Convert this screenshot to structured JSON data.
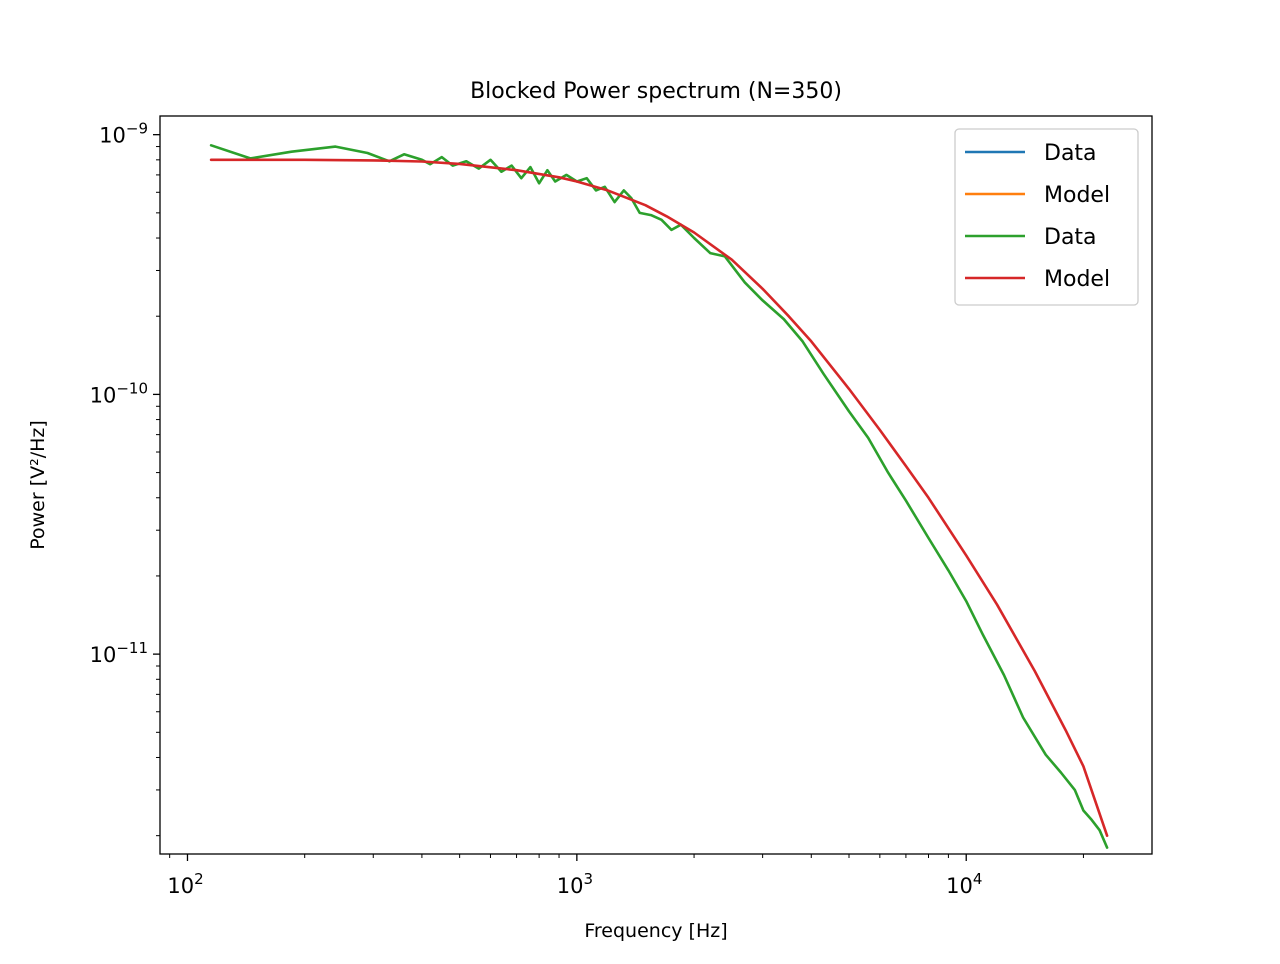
{
  "chart_data": {
    "type": "line",
    "title": "Blocked Power spectrum (N=350)",
    "xlabel": "Frequency [Hz]",
    "ylabel": "Power [V²/Hz]",
    "xscale": "log",
    "yscale": "log",
    "xlim": [
      85,
      30000
    ],
    "ylim": [
      1.7e-12,
      1.18e-09
    ],
    "grid": false,
    "legend": {
      "placement": "top-right"
    },
    "xticks": [
      {
        "value": 100,
        "base": "10",
        "exp": "2"
      },
      {
        "value": 1000,
        "base": "10",
        "exp": "3"
      },
      {
        "value": 10000,
        "base": "10",
        "exp": "4"
      }
    ],
    "yticks": [
      {
        "value": 1e-09,
        "base": "10",
        "exp": "−9"
      },
      {
        "value": 1e-10,
        "base": "10",
        "exp": "−10"
      },
      {
        "value": 1e-11,
        "base": "10",
        "exp": "−11"
      }
    ],
    "series": [
      {
        "name": "Data",
        "color": "#1f77b4",
        "x": [],
        "y": []
      },
      {
        "name": "Model",
        "color": "#ff7f0e",
        "x": [],
        "y": []
      },
      {
        "name": "Data",
        "color": "#2ca02c",
        "x": [
          115,
          145,
          185,
          240,
          290,
          330,
          360,
          400,
          420,
          450,
          480,
          520,
          560,
          600,
          640,
          680,
          720,
          760,
          800,
          840,
          880,
          940,
          1000,
          1060,
          1120,
          1180,
          1250,
          1320,
          1380,
          1450,
          1550,
          1650,
          1750,
          1850,
          2000,
          2200,
          2400,
          2700,
          3000,
          3400,
          3800,
          4300,
          5000,
          5600,
          6300,
          7000,
          8000,
          9000,
          10000,
          11000,
          12500,
          14000,
          16000,
          17500,
          19000,
          20000,
          21000,
          22000,
          23000
        ],
        "y": [
          9.1e-10,
          8.1e-10,
          8.6e-10,
          9e-10,
          8.5e-10,
          7.9e-10,
          8.4e-10,
          8e-10,
          7.7e-10,
          8.2e-10,
          7.6e-10,
          7.9e-10,
          7.4e-10,
          8e-10,
          7.2e-10,
          7.6e-10,
          6.8e-10,
          7.5e-10,
          6.5e-10,
          7.3e-10,
          6.6e-10,
          7e-10,
          6.6e-10,
          6.8e-10,
          6.1e-10,
          6.3e-10,
          5.5e-10,
          6.1e-10,
          5.7e-10,
          5e-10,
          4.9e-10,
          4.7e-10,
          4.3e-10,
          4.5e-10,
          4e-10,
          3.5e-10,
          3.4e-10,
          2.7e-10,
          2.3e-10,
          1.95e-10,
          1.6e-10,
          1.2e-10,
          8.6e-11,
          6.8e-11,
          5e-11,
          3.9e-11,
          2.8e-11,
          2.1e-11,
          1.6e-11,
          1.2e-11,
          8.3e-12,
          5.7e-12,
          4.1e-12,
          3.5e-12,
          3e-12,
          2.5e-12,
          2.3e-12,
          2.1e-12,
          1.8e-12
        ]
      },
      {
        "name": "Model",
        "color": "#d62728",
        "x": [
          115,
          150,
          200,
          300,
          400,
          500,
          700,
          900,
          1000,
          1200,
          1500,
          1700,
          2000,
          2500,
          3000,
          3500,
          4000,
          5000,
          6000,
          7000,
          8000,
          10000,
          12000,
          15000,
          18000,
          20000,
          23000
        ],
        "y": [
          8e-10,
          8e-10,
          8e-10,
          7.96e-10,
          7.88e-10,
          7.72e-10,
          7.3e-10,
          6.85e-10,
          6.6e-10,
          6.1e-10,
          5.35e-10,
          4.85e-10,
          4.2e-10,
          3.3e-10,
          2.55e-10,
          2e-10,
          1.6e-10,
          1.05e-10,
          7.3e-11,
          5.3e-11,
          4e-11,
          2.4e-11,
          1.55e-11,
          8.6e-12,
          5.1e-12,
          3.7e-12,
          2e-12
        ]
      }
    ]
  }
}
